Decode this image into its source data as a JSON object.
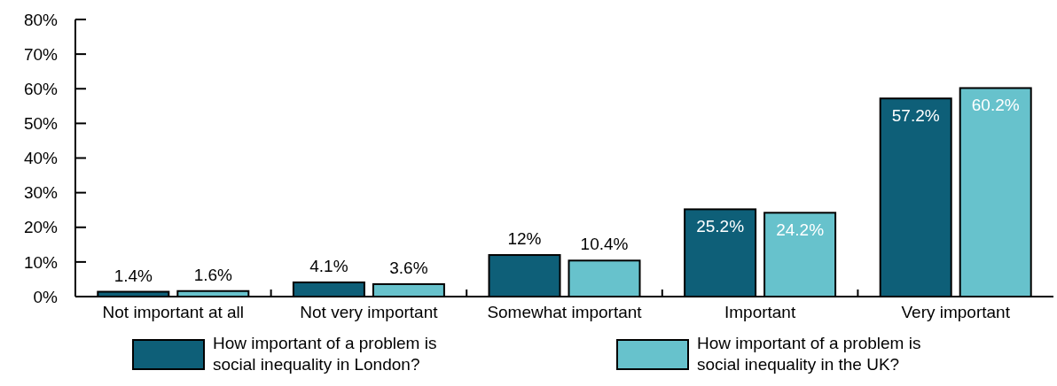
{
  "chart_data": {
    "type": "bar",
    "categories": [
      "Not important at all",
      "Not very important",
      "Somewhat important",
      "Important",
      "Very important"
    ],
    "series": [
      {
        "name": "How important of a problem is social inequality in London?",
        "color": "#0e5f78",
        "values": [
          1.4,
          4.1,
          12,
          25.2,
          57.2
        ],
        "value_labels": [
          "1.4%",
          "4.1%",
          "12%",
          "25.2%",
          "57.2%"
        ]
      },
      {
        "name": "How important of a problem is social inequality in the UK?",
        "color": "#67c2cc",
        "values": [
          1.6,
          3.6,
          10.4,
          24.2,
          60.2
        ],
        "value_labels": [
          "1.6%",
          "3.6%",
          "10.4%",
          "24.2%",
          "60.2%"
        ]
      }
    ],
    "ylim": [
      0,
      80
    ],
    "yticks": [
      {
        "value": 0,
        "label": "0%"
      },
      {
        "value": 10,
        "label": "10%"
      },
      {
        "value": 20,
        "label": "20%"
      },
      {
        "value": 30,
        "label": "30%"
      },
      {
        "value": 40,
        "label": "40%"
      },
      {
        "value": 50,
        "label": "50%"
      },
      {
        "value": 60,
        "label": "60%"
      },
      {
        "value": 70,
        "label": "70%"
      },
      {
        "value": 80,
        "label": "80%"
      }
    ],
    "grid": false,
    "legend": "bottom"
  }
}
